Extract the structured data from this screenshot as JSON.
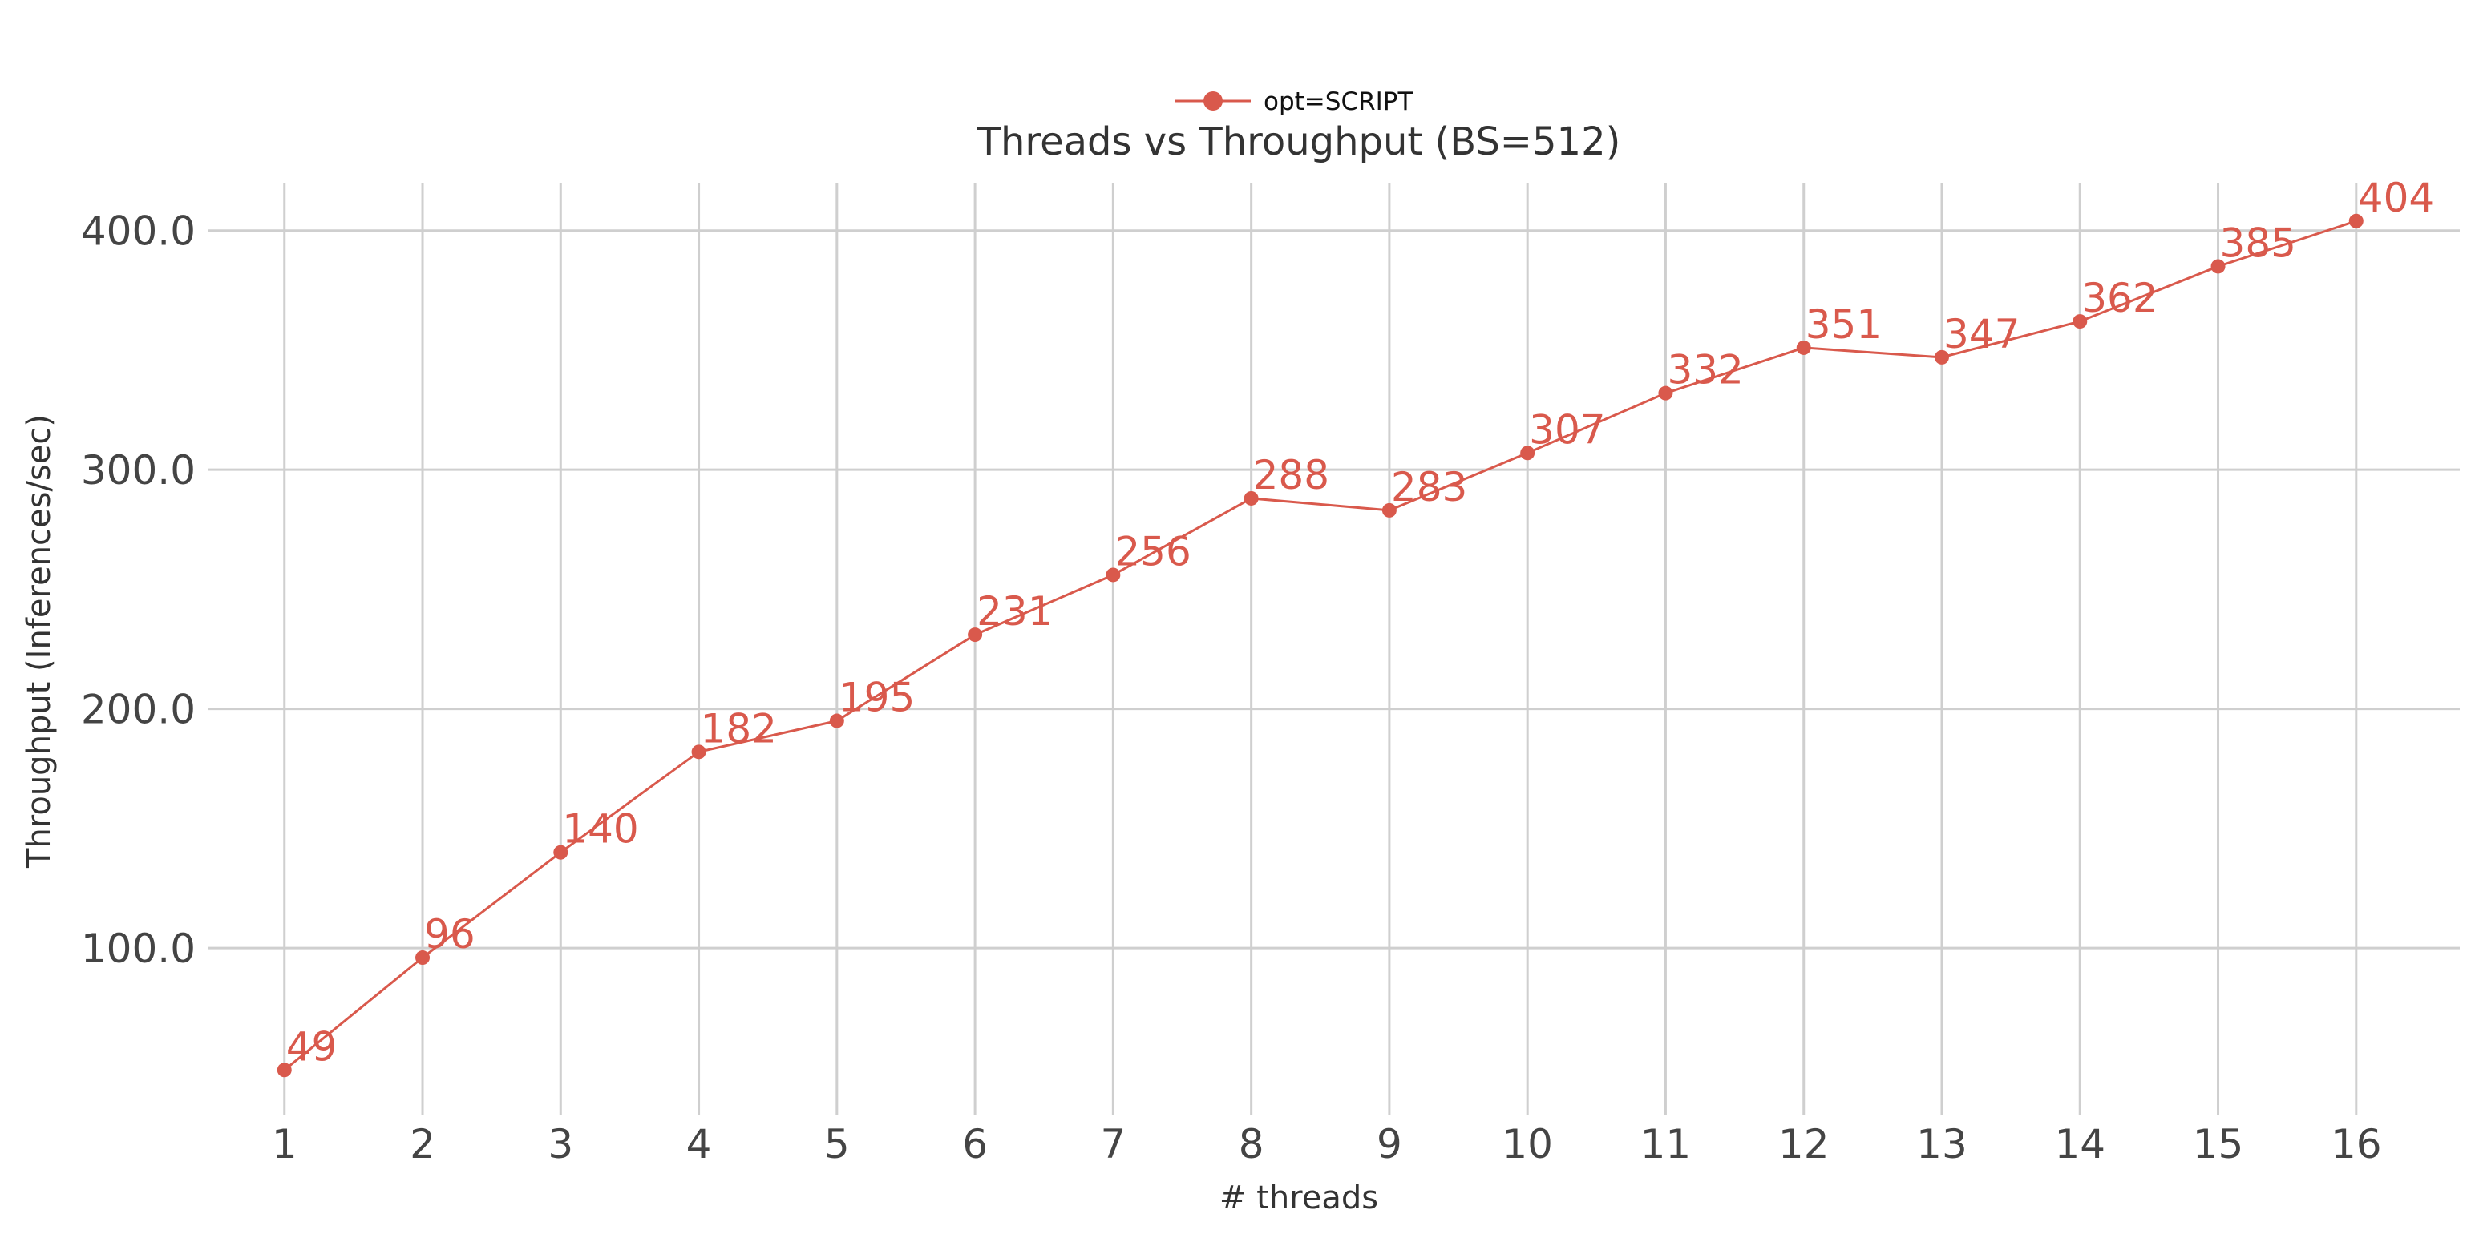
{
  "chart_data": {
    "type": "line",
    "title": "Threads vs Throughput (BS=512)",
    "xlabel": "# threads",
    "ylabel": "Throughput (Inferences/sec)",
    "x": [
      1,
      2,
      3,
      4,
      5,
      6,
      7,
      8,
      9,
      10,
      11,
      12,
      13,
      14,
      15,
      16
    ],
    "x_tick_labels": [
      "1",
      "2",
      "3",
      "4",
      "5",
      "6",
      "7",
      "8",
      "9",
      "10",
      "11",
      "12",
      "13",
      "14",
      "15",
      "16"
    ],
    "y_ticks": [
      100,
      200,
      300,
      400
    ],
    "y_tick_labels": [
      "100.0",
      "200.0",
      "300.0",
      "400.0"
    ],
    "ylim": [
      30,
      420
    ],
    "xlim": [
      0.45,
      16.75
    ],
    "grid": true,
    "legend_position": "top-center",
    "series": [
      {
        "name": "opt=SCRIPT",
        "color": "#d9594c",
        "marker": "circle",
        "values": [
          49,
          96,
          140,
          182,
          195,
          231,
          256,
          288,
          283,
          307,
          332,
          351,
          347,
          362,
          385,
          404
        ],
        "labels": [
          "49",
          "96",
          "140",
          "182",
          "195",
          "231",
          "256",
          "288",
          "283",
          "307",
          "332",
          "351",
          "347",
          "362",
          "385",
          "404"
        ]
      }
    ]
  }
}
